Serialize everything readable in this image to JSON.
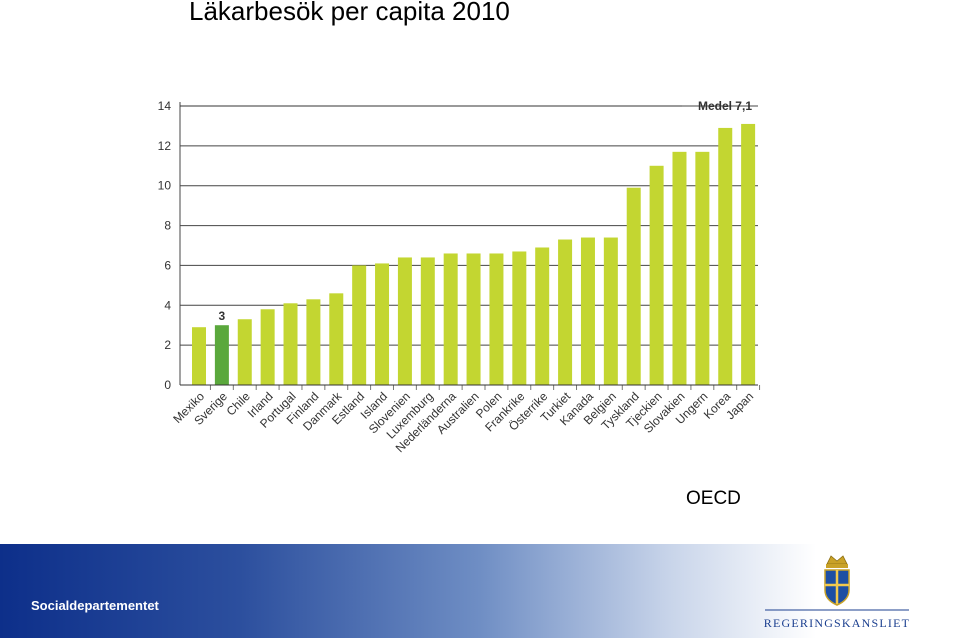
{
  "slide": {
    "title": "Läkarbesök per capita 2010",
    "source": "OECD",
    "department": "Socialdepartementet",
    "logo_text": "REGERINGSKANSLIET"
  },
  "chart_data": {
    "type": "bar",
    "title": "",
    "xlabel": "",
    "ylabel": "",
    "ylim": [
      0,
      14
    ],
    "yticks": [
      0,
      2,
      4,
      6,
      8,
      10,
      12,
      14
    ],
    "grid": true,
    "reference_line": {
      "label": "Medel 7,1",
      "value": 7.1
    },
    "highlight": {
      "category": "Sverige",
      "label": "3",
      "color": "#5aa83c"
    },
    "bar_color": "#c3d631",
    "categories": [
      "Mexiko",
      "Sverige",
      "Chile",
      "Irland",
      "Portugal",
      "Finland",
      "Danmark",
      "Estland",
      "Island",
      "Slovenien",
      "Luxemburg",
      "Nederländerna",
      "Australien",
      "Polen",
      "Frankrike",
      "Österrike",
      "Turkiet",
      "Kanada",
      "Belgien",
      "Tyskland",
      "Tjeckien",
      "Slovakien",
      "Ungern",
      "Korea",
      "Japan"
    ],
    "values": [
      2.9,
      3.0,
      3.3,
      3.8,
      4.1,
      4.3,
      4.6,
      6.0,
      6.1,
      6.4,
      6.4,
      6.6,
      6.6,
      6.6,
      6.7,
      6.9,
      7.3,
      7.4,
      7.4,
      9.9,
      11.0,
      11.7,
      11.7,
      12.9,
      13.1
    ]
  }
}
